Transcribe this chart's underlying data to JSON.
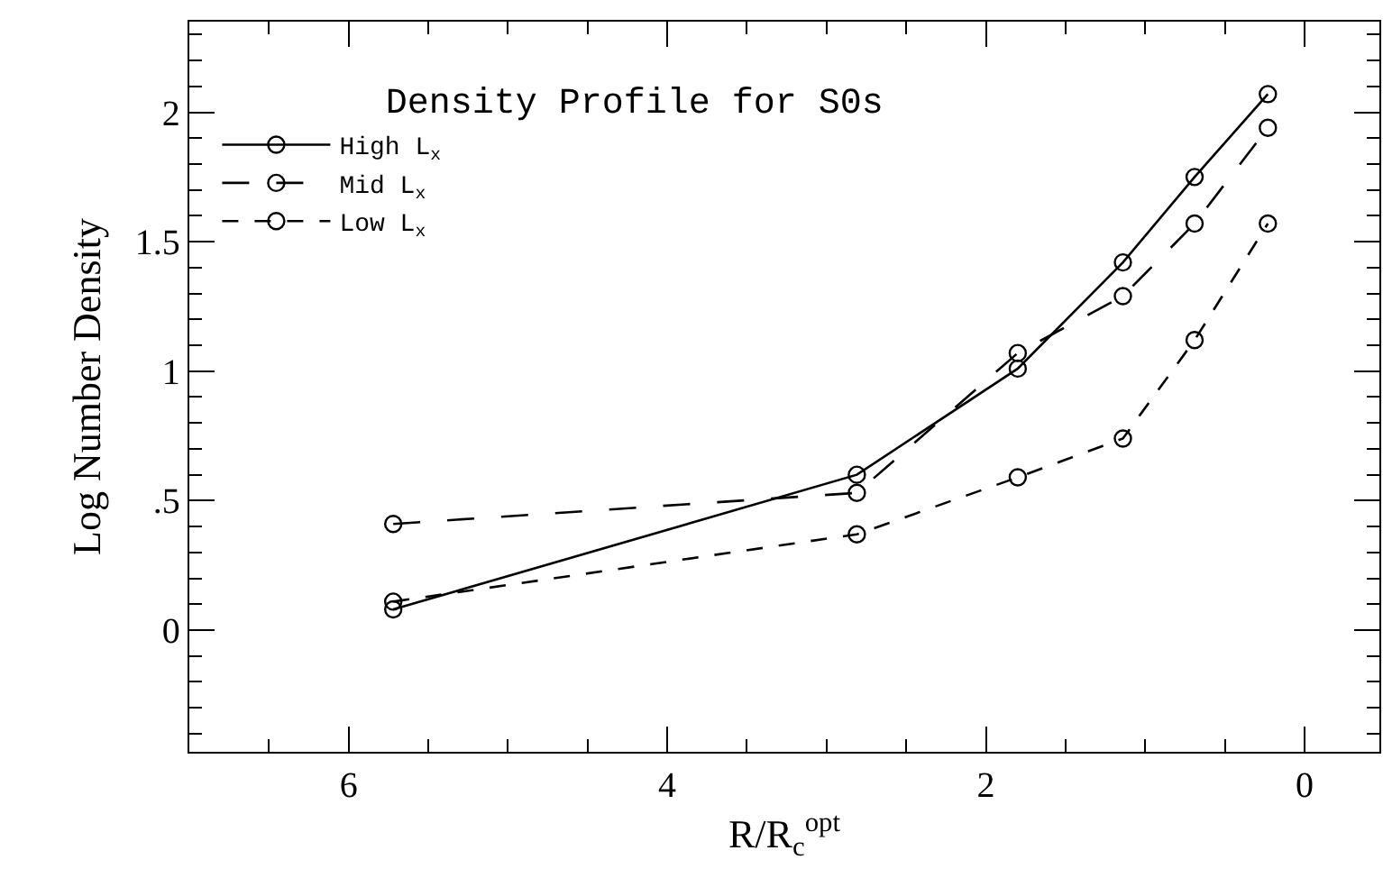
{
  "chart_data": {
    "type": "line",
    "title": "Density Profile for S0s",
    "xlabel": "R/R$_{c}$$^{opt}$",
    "ylabel": "Log Number Density",
    "x": [
      5.72,
      2.81,
      1.8,
      1.14,
      0.69,
      0.23
    ],
    "series": [
      {
        "name": "High L$_{x}$",
        "color": "#000000",
        "line_style": "solid",
        "values": [
          0.08,
          0.6,
          1.01,
          1.42,
          1.75,
          2.07
        ]
      },
      {
        "name": "Mid L$_{x}$",
        "color": "#000000",
        "line_style": "longdash",
        "values": [
          0.41,
          0.53,
          1.07,
          1.29,
          1.57,
          1.94
        ]
      },
      {
        "name": "Low L$_{x}$",
        "color": "#000000",
        "line_style": "dashed",
        "values": [
          0.11,
          0.37,
          0.59,
          0.74,
          1.12,
          1.57
        ]
      }
    ],
    "marker": "circle",
    "legend": "top left",
    "xlim": [
      7,
      -0.47
    ],
    "xticks": [
      6,
      4,
      2,
      0
    ],
    "ylim": [
      -0.47,
      2.35
    ],
    "yticks": [
      0,
      {
        "value": 0.5,
        "label": ".5"
      },
      1,
      1.5,
      2
    ]
  }
}
